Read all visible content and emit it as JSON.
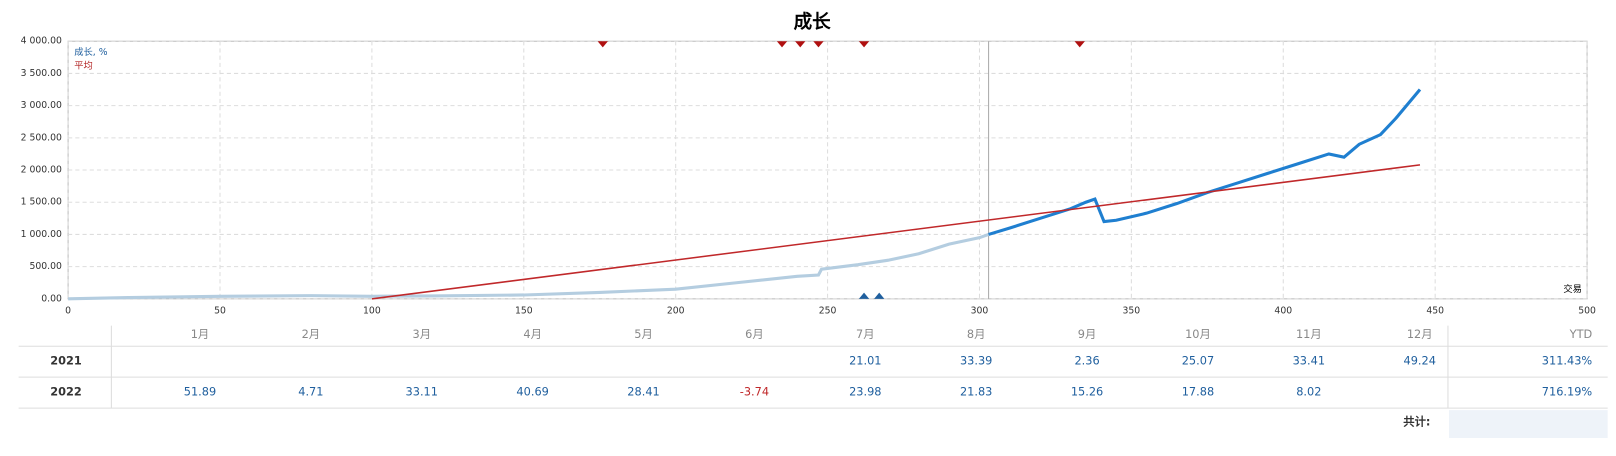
{
  "chart_data": {
    "type": "line",
    "title": "成长",
    "x_label": "交易",
    "xlim": [
      0,
      500
    ],
    "xticks": [
      0,
      50,
      100,
      150,
      200,
      250,
      300,
      350,
      400,
      450,
      500
    ],
    "ylim": [
      0,
      4000
    ],
    "yticks": [
      {
        "value": 0,
        "label": "0.00"
      },
      {
        "value": 500,
        "label": "500.00"
      },
      {
        "value": 1000,
        "label": "1 000.00"
      },
      {
        "value": 1500,
        "label": "1 500.00"
      },
      {
        "value": 2000,
        "label": "2 000.00"
      },
      {
        "value": 2500,
        "label": "2 500.00"
      },
      {
        "value": 3000,
        "label": "3 000.00"
      },
      {
        "value": 3500,
        "label": "3 500.00"
      },
      {
        "value": 4000,
        "label": "4 000.00"
      }
    ],
    "grid": true,
    "legend": [
      {
        "name": "成长, %",
        "color": "#1f5f9e"
      },
      {
        "name": "平均",
        "color": "#b22222"
      }
    ],
    "divider_x": 303,
    "series": [
      {
        "color": "#b4cde0",
        "width": 3,
        "x": [
          0,
          20,
          50,
          80,
          100,
          120,
          150,
          175,
          200,
          220,
          240,
          247,
          248,
          260,
          270,
          280,
          290,
          300,
          303
        ],
        "values": [
          0,
          20,
          40,
          50,
          40,
          45,
          60,
          100,
          150,
          250,
          350,
          370,
          460,
          530,
          600,
          700,
          850,
          950,
          1000
        ]
      },
      {
        "color": "#1f7fd0",
        "width": 3,
        "x": [
          303,
          310,
          320,
          330,
          335,
          338,
          341,
          345,
          355,
          365,
          375,
          385,
          395,
          405,
          415,
          420,
          425,
          432,
          437,
          445
        ],
        "values": [
          1000,
          1100,
          1250,
          1400,
          1500,
          1550,
          1200,
          1220,
          1330,
          1480,
          1650,
          1800,
          1950,
          2100,
          2250,
          2200,
          2400,
          2550,
          2800,
          3250
        ]
      },
      {
        "color": "#c0282a",
        "width": 1.5,
        "x": [
          100,
          445
        ],
        "values": [
          0,
          2080
        ]
      }
    ],
    "top_markers": {
      "color": "#b01010",
      "x": [
        176,
        235,
        241,
        247,
        262,
        333
      ]
    },
    "bottom_markers": {
      "color": "#1f5f9e",
      "x": [
        262,
        267
      ]
    }
  },
  "table": {
    "columns": [
      "1月",
      "2月",
      "3月",
      "4月",
      "5月",
      "6月",
      "7月",
      "8月",
      "9月",
      "10月",
      "11月",
      "12月",
      "YTD"
    ],
    "rows": [
      {
        "year": "2021",
        "cells": [
          null,
          null,
          null,
          null,
          null,
          null,
          "21.01",
          "33.39",
          "2.36",
          "25.07",
          "33.41",
          "49.24",
          "311.43%"
        ]
      },
      {
        "year": "2022",
        "cells": [
          "51.89",
          "4.71",
          "33.11",
          "40.69",
          "28.41",
          "-3.74",
          "23.98",
          "21.83",
          "15.26",
          "17.88",
          "8.02",
          null,
          "716.19%"
        ]
      }
    ],
    "total_label": "共计:"
  }
}
